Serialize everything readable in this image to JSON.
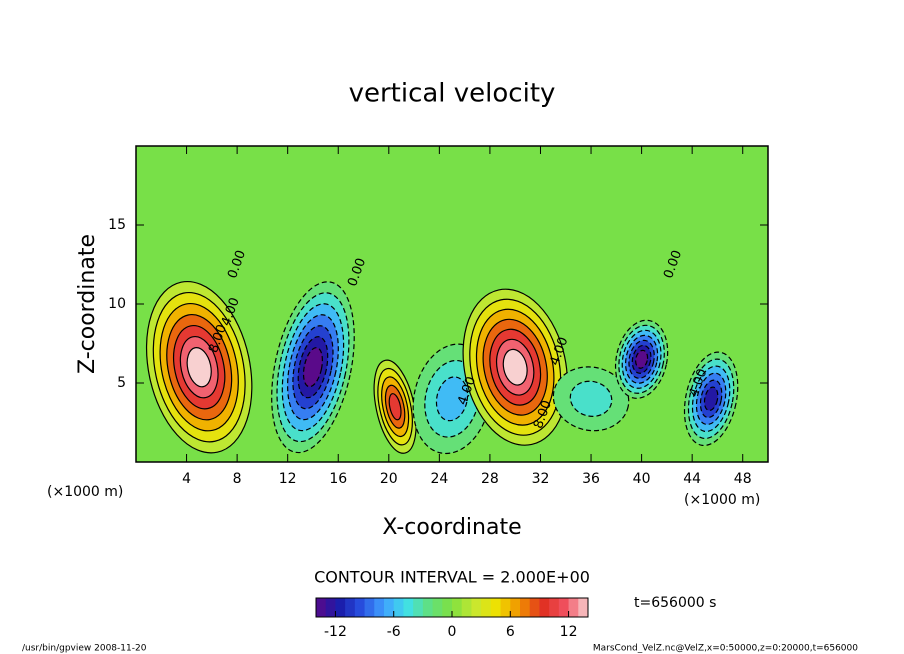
{
  "chart_data": {
    "type": "contour",
    "title": "vertical velocity",
    "xlabel": "X-coordinate",
    "ylabel": "Z-coordinate",
    "x_unit_left": "(×1000 m)",
    "x_unit_right": "(×1000 m)",
    "contour_interval": "CONTOUR INTERVAL = 2.000E+00",
    "time_label": "t=656000 s",
    "footer_left": "/usr/bin/gpview  2008-11-20",
    "footer_right": "MarsCond_VelZ.nc@VelZ,x=0:50000,z=0:20000,t=656000",
    "xlim": [
      0,
      50
    ],
    "ylim": [
      0,
      20
    ],
    "xticks": [
      4,
      8,
      12,
      16,
      20,
      24,
      28,
      32,
      36,
      40,
      44,
      48
    ],
    "yticks": [
      5,
      10,
      15
    ],
    "background_color": "#78e048",
    "colormap": [
      "#5a0a8a",
      "#1a1aa8",
      "#2850e0",
      "#40a0ff",
      "#40e0e8",
      "#60e080",
      "#80e040",
      "#c8e830",
      "#f0e000",
      "#f09000",
      "#e03020",
      "#f05060",
      "#f8d0d0"
    ],
    "colorbar_lim": [
      -14,
      14
    ],
    "colorbar_ticks": [
      -12,
      -6,
      0,
      6,
      12
    ],
    "features": [
      {
        "x": 5,
        "z": 6,
        "value": 14,
        "width": 8,
        "height": 11
      },
      {
        "x": 14,
        "z": 6,
        "value": -14,
        "width": 6,
        "height": 11
      },
      {
        "x": 20.5,
        "z": 3.5,
        "value": 10,
        "width": 3,
        "height": 6
      },
      {
        "x": 25,
        "z": 4,
        "value": -6,
        "width": 6,
        "height": 7
      },
      {
        "x": 30,
        "z": 6,
        "value": 14,
        "width": 8,
        "height": 10
      },
      {
        "x": 36,
        "z": 4,
        "value": -4,
        "width": 6,
        "height": 4
      },
      {
        "x": 40,
        "z": 6.5,
        "value": -14,
        "width": 4,
        "height": 5
      },
      {
        "x": 45.5,
        "z": 4,
        "value": -12,
        "width": 4,
        "height": 6
      }
    ],
    "contour_labels": [
      {
        "text": "4.00",
        "x": 7.5,
        "z": 9.5
      },
      {
        "text": "8.00",
        "x": 6.5,
        "z": 7.8
      },
      {
        "text": "0.00",
        "x": 8,
        "z": 12.5
      },
      {
        "text": "0.00",
        "x": 17.5,
        "z": 12
      },
      {
        "text": "4.00",
        "x": 26.2,
        "z": 4.5
      },
      {
        "text": "4.00",
        "x": 33.5,
        "z": 7
      },
      {
        "text": "8.00",
        "x": 32.2,
        "z": 3
      },
      {
        "text": "0.00",
        "x": 42.5,
        "z": 12.5
      },
      {
        "text": "4.00",
        "x": 44.5,
        "z": 5
      }
    ]
  }
}
